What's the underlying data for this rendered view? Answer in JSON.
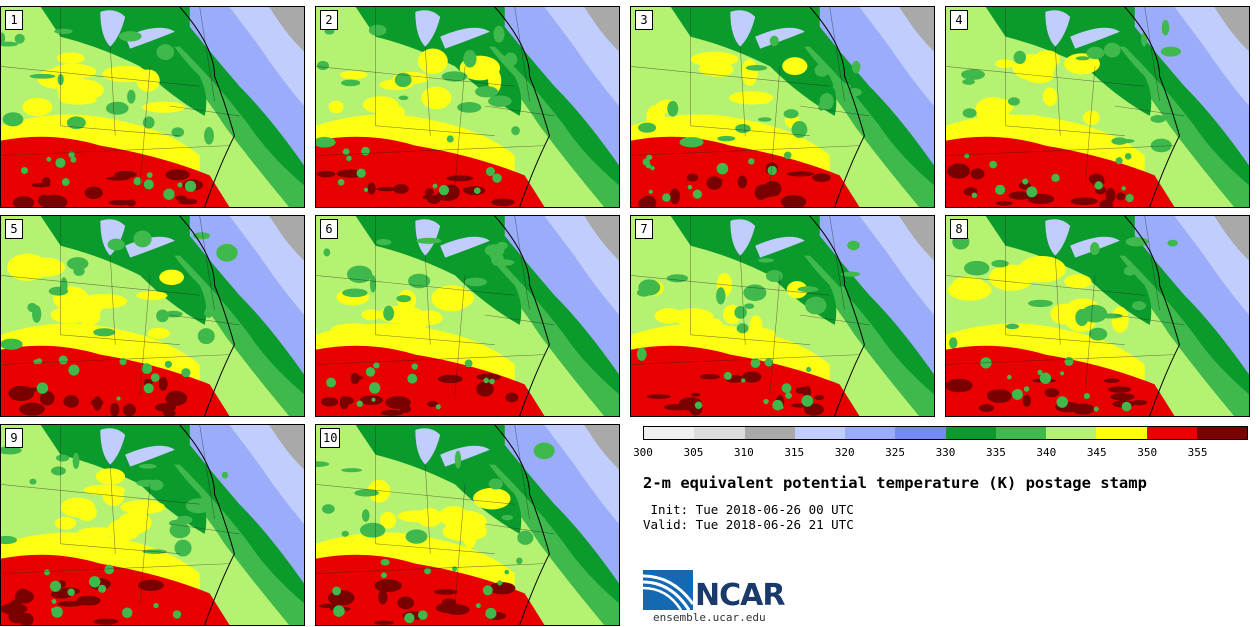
{
  "title": "2-m equivalent potential temperature (K) postage stamp",
  "init_text": " Init: Tue 2018-06-26 00 UTC",
  "valid_text": "Valid: Tue 2018-06-26 21 UTC",
  "logo": {
    "name": "NCAR",
    "site": "ensemble.ucar.edu"
  },
  "colorbar": {
    "ticks": [
      "300",
      "305",
      "310",
      "315",
      "320",
      "325",
      "330",
      "335",
      "340",
      "345",
      "350",
      "355"
    ],
    "colors": [
      "#f0f0f0",
      "#dcdcdc",
      "#a9a9a9",
      "#c0cdfd",
      "#9aacfa",
      "#7489f2",
      "#0b9a2c",
      "#3fb94c",
      "#b6f271",
      "#ffff14",
      "#e80000",
      "#7a0000"
    ]
  },
  "members": [
    {
      "label": "1"
    },
    {
      "label": "2"
    },
    {
      "label": "3"
    },
    {
      "label": "4"
    },
    {
      "label": "5"
    },
    {
      "label": "6"
    },
    {
      "label": "7"
    },
    {
      "label": "8"
    },
    {
      "label": "9"
    },
    {
      "label": "10"
    }
  ]
}
